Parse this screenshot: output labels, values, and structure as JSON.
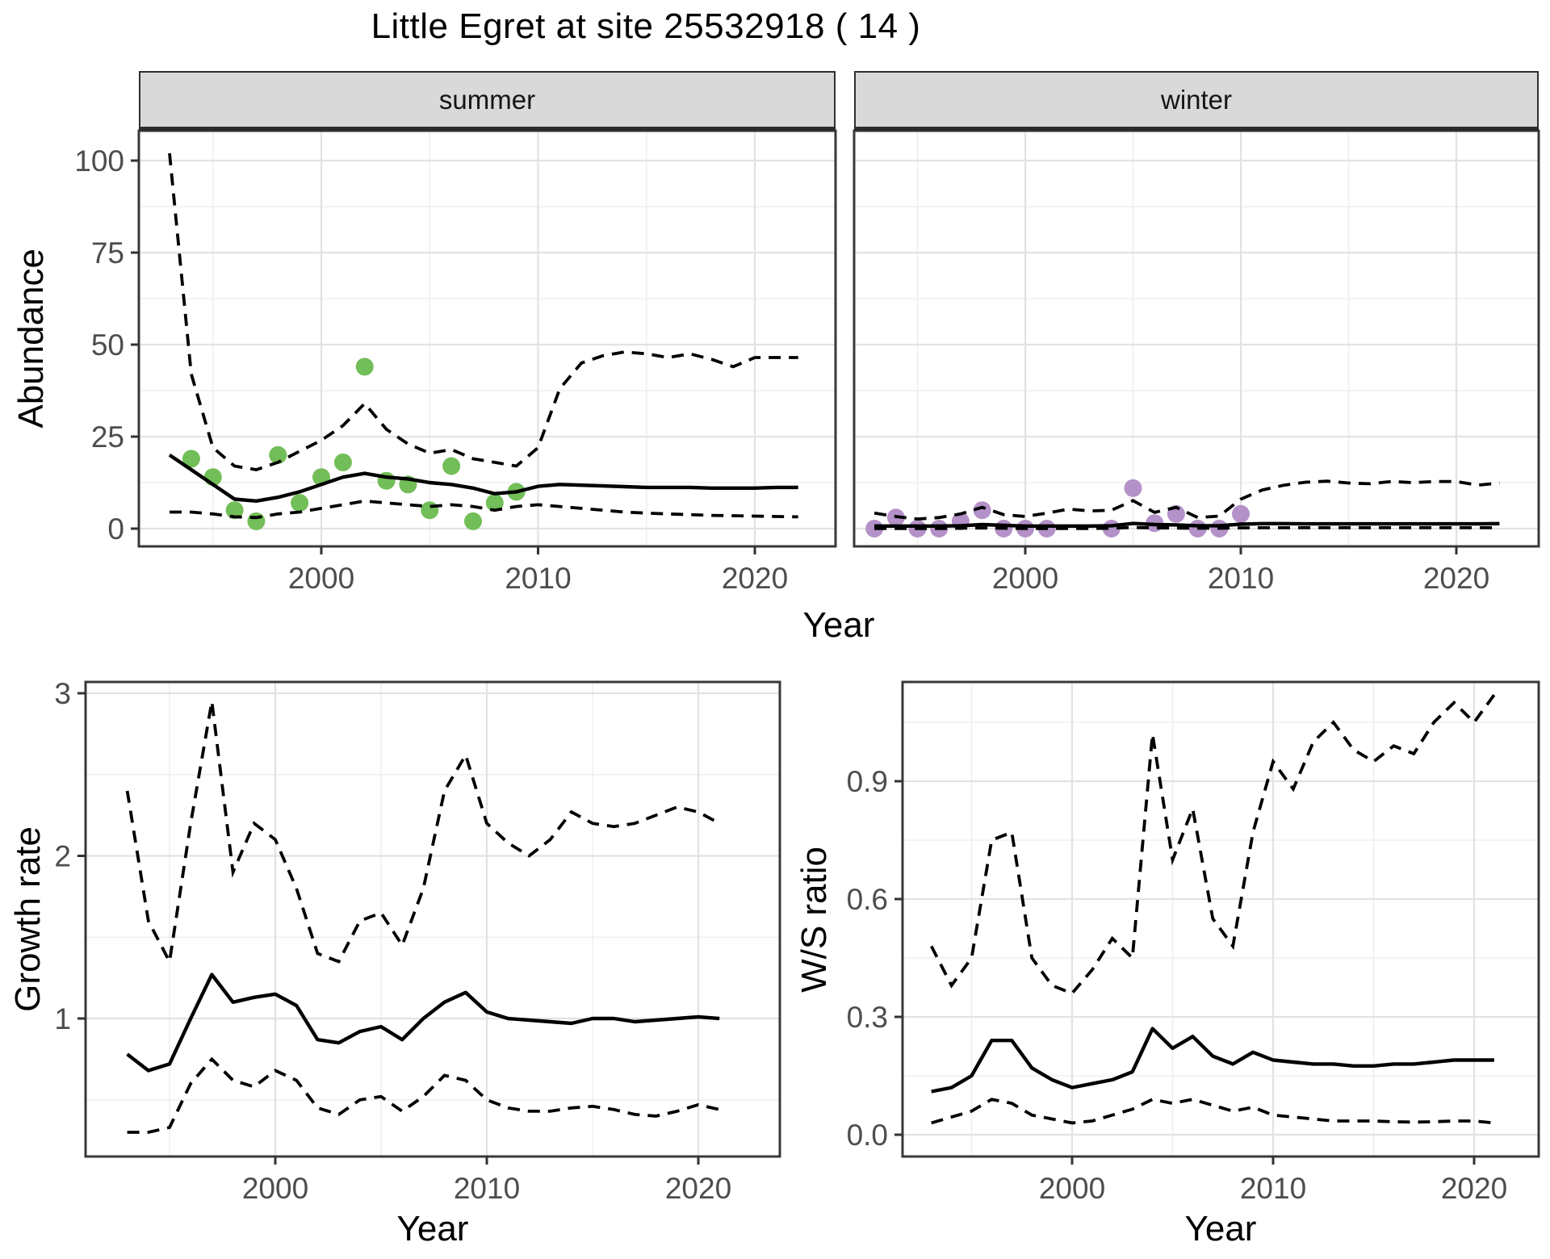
{
  "title": "Little Egret at site 25532918 ( 14 )",
  "facets": [
    {
      "label": "summer"
    },
    {
      "label": "winter"
    }
  ],
  "axis_titles": {
    "abundance": "Abundance",
    "year_top": "Year",
    "growth": "Growth rate",
    "year_growth": "Year",
    "ws": "W/S ratio",
    "year_ws": "Year"
  },
  "colors": {
    "summer_point": "#72BE58",
    "winter_point": "#B491C8",
    "line": "#000000",
    "strip_bg": "#D9D9D9",
    "panel_border": "#383838",
    "grid_major": "#E2E2E2",
    "grid_minor": "#EFEFEF",
    "tick_text": "#4D4D4D"
  },
  "chart_data": [
    {
      "id": "abundance_summer",
      "type": "line",
      "facet": "summer",
      "xlabel": "Year",
      "ylabel": "Abundance",
      "xlim": [
        1991.5,
        2023.7
      ],
      "ylim": [
        -4.9,
        108.5
      ],
      "grid": true,
      "legend": "none",
      "x_tick_values": [
        2000,
        2010,
        2020
      ],
      "x_tick_labels": [
        "2000",
        "2010",
        "2020"
      ],
      "x_minor": [
        1995,
        2005,
        2015
      ],
      "y_tick_values": [
        0,
        25,
        50,
        75,
        100
      ],
      "y_tick_labels": [
        "0",
        "25",
        "50",
        "75",
        "100"
      ],
      "y_minor": [
        12.5,
        37.5,
        62.5,
        87.5
      ],
      "show_y_tick_labels": true,
      "years": [
        1993,
        1994,
        1995,
        1996,
        1997,
        1998,
        1999,
        2000,
        2001,
        2002,
        2003,
        2004,
        2005,
        2006,
        2007,
        2008,
        2009,
        2010,
        2011,
        2012,
        2013,
        2014,
        2015,
        2016,
        2017,
        2018,
        2019,
        2020,
        2021,
        2022
      ],
      "series": {
        "fit": [
          20,
          16,
          12,
          8,
          7.5,
          8.5,
          10,
          12,
          14,
          15,
          14,
          13.5,
          12.5,
          12,
          11,
          9.5,
          10,
          11.5,
          12,
          11.8,
          11.6,
          11.4,
          11.2,
          11.2,
          11.2,
          11,
          11,
          11,
          11.2,
          11.2
        ],
        "upper_ci": [
          102,
          42,
          22,
          17,
          16,
          18,
          21,
          24,
          28,
          34,
          27,
          23,
          20.5,
          21.5,
          19,
          18,
          17,
          22,
          38,
          45,
          47,
          48,
          47.5,
          46.5,
          47.5,
          46,
          44,
          46.5,
          46.5,
          46.5
        ],
        "lower_ci": [
          4.5,
          4.5,
          4,
          3.2,
          3,
          4,
          4.5,
          5.5,
          6.5,
          7.5,
          7,
          6.5,
          6,
          6.5,
          6,
          5,
          6,
          6.5,
          6,
          5.5,
          5,
          4.5,
          4.2,
          4,
          3.8,
          3.6,
          3.5,
          3.4,
          3.3,
          3.2
        ]
      },
      "points": {
        "color_key": "summer_point",
        "data": [
          [
            1994,
            19
          ],
          [
            1995,
            14
          ],
          [
            1996,
            5
          ],
          [
            1997,
            2
          ],
          [
            1998,
            20
          ],
          [
            1999,
            7
          ],
          [
            2000,
            14
          ],
          [
            2001,
            18
          ],
          [
            2002,
            44
          ],
          [
            2003,
            13
          ],
          [
            2004,
            12
          ],
          [
            2005,
            5
          ],
          [
            2006,
            17
          ],
          [
            2007,
            2
          ],
          [
            2008,
            7
          ],
          [
            2009,
            10
          ]
        ]
      }
    },
    {
      "id": "abundance_winter",
      "type": "line",
      "facet": "winter",
      "xlabel": "Year",
      "ylabel": "Abundance",
      "xlim": [
        1992.0,
        2023.8
      ],
      "ylim": [
        -4.9,
        108.5
      ],
      "grid": true,
      "legend": "none",
      "x_tick_values": [
        2000,
        2010,
        2020
      ],
      "x_tick_labels": [
        "2000",
        "2010",
        "2020"
      ],
      "x_minor": [
        1995,
        2005,
        2015
      ],
      "y_tick_values": [
        0,
        25,
        50,
        75,
        100
      ],
      "y_tick_labels": [
        "0",
        "25",
        "50",
        "75",
        "100"
      ],
      "y_minor": [
        12.5,
        37.5,
        62.5,
        87.5
      ],
      "show_y_tick_labels": false,
      "years": [
        1993,
        1994,
        1995,
        1996,
        1997,
        1998,
        1999,
        2000,
        2001,
        2002,
        2003,
        2004,
        2005,
        2006,
        2007,
        2008,
        2009,
        2010,
        2011,
        2012,
        2013,
        2014,
        2015,
        2016,
        2017,
        2018,
        2019,
        2020,
        2021,
        2022
      ],
      "series": {
        "fit": [
          0.7,
          0.7,
          0.7,
          0.7,
          0.8,
          1.1,
          0.9,
          0.7,
          0.7,
          0.7,
          0.7,
          0.8,
          1.4,
          1.1,
          1.0,
          0.8,
          0.8,
          1.2,
          1.35,
          1.35,
          1.3,
          1.3,
          1.3,
          1.3,
          1.3,
          1.3,
          1.3,
          1.3,
          1.3,
          1.35
        ],
        "upper_ci": [
          4.2,
          3.3,
          2.6,
          3.0,
          4.0,
          5.8,
          3.8,
          3.3,
          4.2,
          5.3,
          4.8,
          5.0,
          7.6,
          4.4,
          5.8,
          3.0,
          3.4,
          8.0,
          10.5,
          11.8,
          12.6,
          12.9,
          12.4,
          12.2,
          12.8,
          12.5,
          12.8,
          12.8,
          11.8,
          12.4
        ],
        "lower_ci": [
          0.05,
          0.05,
          0.05,
          0.05,
          0.1,
          0.2,
          0.1,
          0.05,
          0.05,
          0.05,
          0.05,
          0.1,
          0.3,
          0.2,
          0.15,
          0.1,
          0.1,
          0.2,
          0.25,
          0.25,
          0.25,
          0.25,
          0.25,
          0.25,
          0.25,
          0.25,
          0.25,
          0.25,
          0.25,
          0.25
        ]
      },
      "points": {
        "color_key": "winter_point",
        "data": [
          [
            1993,
            0
          ],
          [
            1994,
            3
          ],
          [
            1995,
            0
          ],
          [
            1996,
            0
          ],
          [
            1997,
            2
          ],
          [
            1998,
            5
          ],
          [
            1999,
            0
          ],
          [
            2000,
            0
          ],
          [
            2001,
            0
          ],
          [
            2004,
            0
          ],
          [
            2005,
            11
          ],
          [
            2006,
            1.5
          ],
          [
            2007,
            4
          ],
          [
            2008,
            0
          ],
          [
            2009,
            0
          ],
          [
            2010,
            4
          ]
        ]
      }
    },
    {
      "id": "growth_rate",
      "type": "line",
      "facet": "",
      "xlabel": "Year",
      "ylabel": "Growth rate",
      "xlim": [
        1991.0,
        2023.9
      ],
      "ylim": [
        0.15,
        3.07
      ],
      "grid": true,
      "legend": "none",
      "x_tick_values": [
        2000,
        2010,
        2020
      ],
      "x_tick_labels": [
        "2000",
        "2010",
        "2020"
      ],
      "x_minor": [
        1995,
        2005,
        2015
      ],
      "y_tick_values": [
        1,
        2,
        3
      ],
      "y_tick_labels": [
        "1",
        "2",
        "3"
      ],
      "y_minor": [
        0.5,
        1.5,
        2.5
      ],
      "show_y_tick_labels": true,
      "years": [
        1993,
        1994,
        1995,
        1996,
        1997,
        1998,
        1999,
        2000,
        2001,
        2002,
        2003,
        2004,
        2005,
        2006,
        2007,
        2008,
        2009,
        2010,
        2011,
        2012,
        2013,
        2014,
        2015,
        2016,
        2017,
        2018,
        2019,
        2020,
        2021
      ],
      "series": {
        "fit": [
          0.78,
          0.68,
          0.72,
          1.0,
          1.27,
          1.1,
          1.13,
          1.15,
          1.08,
          0.87,
          0.85,
          0.92,
          0.95,
          0.87,
          1.0,
          1.1,
          1.16,
          1.04,
          1.0,
          0.99,
          0.98,
          0.97,
          1.0,
          1.0,
          0.98,
          0.99,
          1.0,
          1.01,
          1.0
        ],
        "upper_ci": [
          2.4,
          1.6,
          1.35,
          2.2,
          2.95,
          1.9,
          2.2,
          2.1,
          1.8,
          1.4,
          1.35,
          1.6,
          1.65,
          1.45,
          1.8,
          2.4,
          2.62,
          2.2,
          2.08,
          2.0,
          2.1,
          2.27,
          2.2,
          2.18,
          2.2,
          2.25,
          2.3,
          2.27,
          2.2
        ],
        "lower_ci": [
          0.3,
          0.3,
          0.33,
          0.6,
          0.75,
          0.62,
          0.58,
          0.68,
          0.62,
          0.45,
          0.41,
          0.5,
          0.52,
          0.43,
          0.52,
          0.65,
          0.62,
          0.5,
          0.45,
          0.43,
          0.43,
          0.45,
          0.46,
          0.44,
          0.41,
          0.4,
          0.43,
          0.47,
          0.44
        ]
      },
      "points": null
    },
    {
      "id": "ws_ratio",
      "type": "line",
      "facet": "",
      "xlabel": "Year",
      "ylabel": "W/S ratio",
      "xlim": [
        1991.6,
        2023.2
      ],
      "ylim": [
        -0.055,
        1.153
      ],
      "grid": true,
      "legend": "none",
      "x_tick_values": [
        2000,
        2010,
        2020
      ],
      "x_tick_labels": [
        "2000",
        "2010",
        "2020"
      ],
      "x_minor": [
        1995,
        2005,
        2015
      ],
      "y_tick_values": [
        0,
        0.3,
        0.6,
        0.9
      ],
      "y_tick_labels": [
        "0.0",
        "0.3",
        "0.6",
        "0.9"
      ],
      "y_minor": [
        0.15,
        0.45,
        0.75,
        1.05
      ],
      "show_y_tick_labels": true,
      "years": [
        1993,
        1994,
        1995,
        1996,
        1997,
        1998,
        1999,
        2000,
        2001,
        2002,
        2003,
        2004,
        2005,
        2006,
        2007,
        2008,
        2009,
        2010,
        2011,
        2012,
        2013,
        2014,
        2015,
        2016,
        2017,
        2018,
        2019,
        2020,
        2021
      ],
      "series": {
        "fit": [
          0.11,
          0.12,
          0.15,
          0.24,
          0.24,
          0.17,
          0.14,
          0.12,
          0.13,
          0.14,
          0.16,
          0.27,
          0.22,
          0.25,
          0.2,
          0.18,
          0.21,
          0.19,
          0.185,
          0.18,
          0.18,
          0.175,
          0.175,
          0.18,
          0.18,
          0.185,
          0.19,
          0.19,
          0.19
        ],
        "upper_ci": [
          0.48,
          0.38,
          0.45,
          0.75,
          0.77,
          0.45,
          0.38,
          0.36,
          0.42,
          0.5,
          0.45,
          1.02,
          0.7,
          0.83,
          0.55,
          0.48,
          0.77,
          0.95,
          0.88,
          1.0,
          1.05,
          0.98,
          0.95,
          0.99,
          0.97,
          1.05,
          1.1,
          1.05,
          1.12
        ],
        "lower_ci": [
          0.03,
          0.045,
          0.06,
          0.09,
          0.08,
          0.05,
          0.04,
          0.03,
          0.035,
          0.05,
          0.065,
          0.09,
          0.08,
          0.09,
          0.075,
          0.06,
          0.07,
          0.05,
          0.045,
          0.04,
          0.035,
          0.035,
          0.035,
          0.033,
          0.032,
          0.033,
          0.035,
          0.035,
          0.03
        ]
      },
      "points": null
    }
  ],
  "line_styles": {
    "fit": "solid",
    "upper_ci": "dashed",
    "lower_ci": "dashed"
  }
}
